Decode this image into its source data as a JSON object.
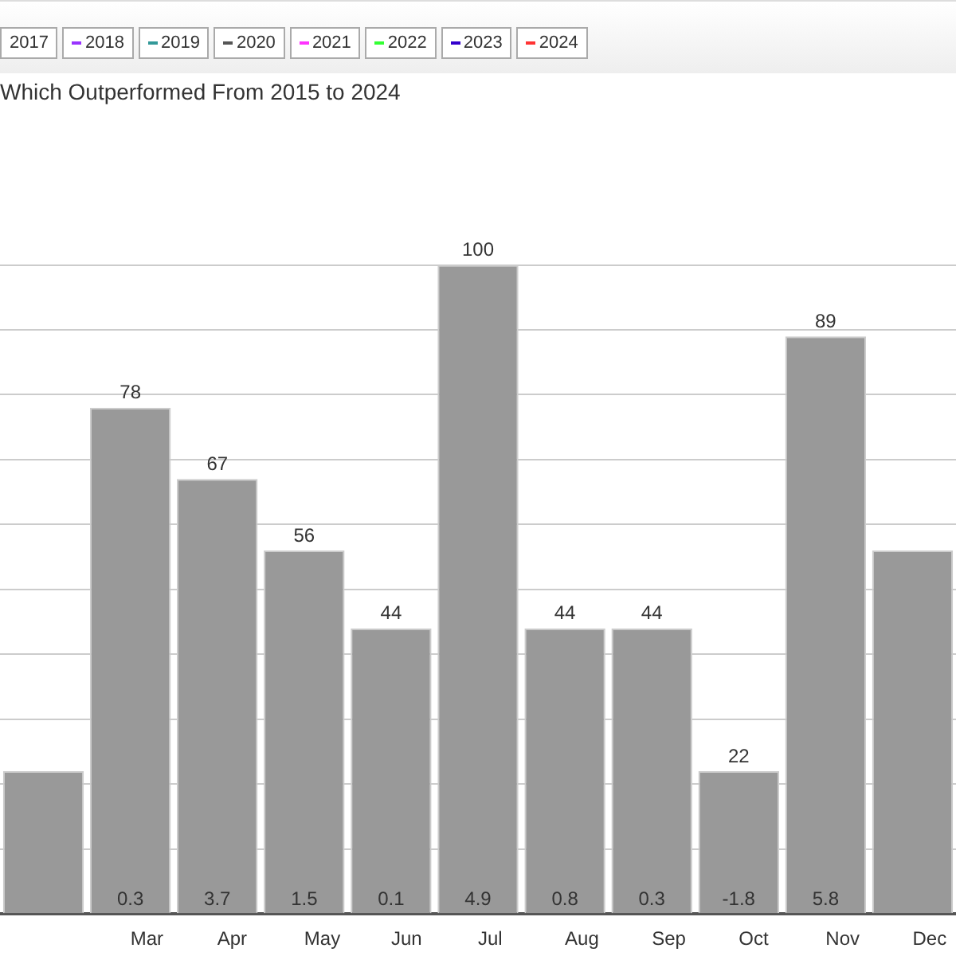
{
  "chart_data": {
    "type": "bar",
    "title": "Which Outperformed From 2015 to 2024",
    "categories": [
      null,
      "Mar",
      "Apr",
      "May",
      "Jun",
      "Jul",
      "Aug",
      "Sep",
      "Oct",
      "Nov",
      "Dec"
    ],
    "values": [
      22,
      78,
      67,
      56,
      44,
      100,
      44,
      44,
      22,
      89,
      56
    ],
    "value_labels": [
      null,
      "78",
      "67",
      "56",
      "44",
      "100",
      "44",
      "44",
      "22",
      "89",
      null
    ],
    "color": "#999999",
    "yticks": [
      {
        "value": 0,
        "label": null
      },
      {
        "value": 10,
        "label": null
      },
      {
        "value": 20,
        "label": null
      },
      {
        "value": 30,
        "label": null
      },
      {
        "value": 40,
        "label": null
      },
      {
        "value": 50,
        "label": null
      },
      {
        "value": 60,
        "label": null
      },
      {
        "value": 70,
        "label": null
      },
      {
        "value": 80,
        "label": null
      },
      {
        "value": 90,
        "label": null
      },
      {
        "value": 100,
        "label": null
      }
    ],
    "grid": "y",
    "tick_labels": "x",
    "annotations": [
      "2017",
      "2018",
      "2019",
      "2020",
      "2021",
      "2022",
      "2023",
      "2024",
      "0.3",
      "3.7",
      "1.5",
      "0.1",
      "4.9",
      "0.8",
      "0.3",
      "-1.8",
      "5.8"
    ]
  }
}
